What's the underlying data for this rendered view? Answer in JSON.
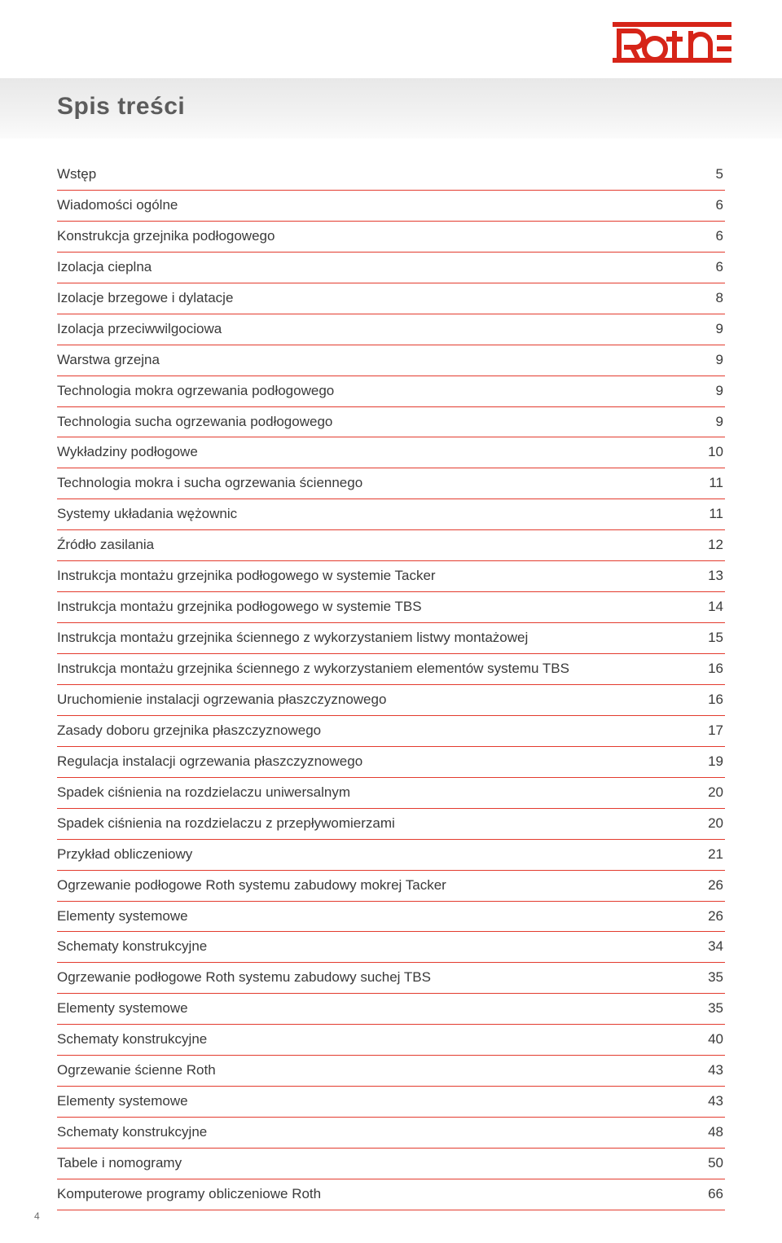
{
  "brand": {
    "name": "Roth",
    "color": "#d62418"
  },
  "title": "Spis treści",
  "title_color": "#5c5c5c",
  "band_gradient": [
    "#e8e8e8",
    "#fbfbfb"
  ],
  "rule_color": "#e33b2e",
  "text_color": "#3a3a3a",
  "body_fontsize": 17,
  "page_number": "4",
  "toc": [
    {
      "label": "Wstęp",
      "page": "5"
    },
    {
      "label": "Wiadomości ogólne",
      "page": "6"
    },
    {
      "label": "Konstrukcja grzejnika podłogowego",
      "page": "6"
    },
    {
      "label": "Izolacja cieplna",
      "page": "6"
    },
    {
      "label": "Izolacje brzegowe i dylatacje",
      "page": "8"
    },
    {
      "label": "Izolacja przeciwwilgociowa",
      "page": "9"
    },
    {
      "label": "Warstwa grzejna",
      "page": "9"
    },
    {
      "label": "Technologia mokra ogrzewania podłogowego",
      "page": "9"
    },
    {
      "label": "Technologia sucha ogrzewania podłogowego",
      "page": "9"
    },
    {
      "label": "Wykładziny podłogowe",
      "page": "10"
    },
    {
      "label": "Technologia mokra i sucha ogrzewania ściennego",
      "page": "11"
    },
    {
      "label": "Systemy układania wężownic",
      "page": "11"
    },
    {
      "label": "Źródło zasilania",
      "page": "12"
    },
    {
      "label": "Instrukcja montażu grzejnika podłogowego w systemie Tacker",
      "page": "13"
    },
    {
      "label": "Instrukcja montażu grzejnika podłogowego w systemie TBS",
      "page": "14"
    },
    {
      "label": "Instrukcja montażu grzejnika ściennego z wykorzystaniem listwy montażowej",
      "page": "15"
    },
    {
      "label": " Instrukcja montażu grzejnika ściennego z wykorzystaniem elementów systemu TBS",
      "page": "16"
    },
    {
      "label": "Uruchomienie instalacji ogrzewania płaszczyznowego",
      "page": "16"
    },
    {
      "label": "Zasady doboru grzejnika płaszczyznowego",
      "page": "17"
    },
    {
      "label": "Regulacja instalacji ogrzewania płaszczyznowego",
      "page": "19"
    },
    {
      "label": "Spadek ciśnienia na rozdzielaczu uniwersalnym",
      "page": "20"
    },
    {
      "label": "Spadek ciśnienia na rozdzielaczu z przepływomierzami",
      "page": "20"
    },
    {
      "label": "Przykład obliczeniowy",
      "page": "21"
    },
    {
      "label": "Ogrzewanie podłogowe Roth systemu zabudowy mokrej Tacker",
      "page": "26"
    },
    {
      "label": "Elementy systemowe",
      "page": "26"
    },
    {
      "label": "Schematy konstrukcyjne",
      "page": "34"
    },
    {
      "label": "Ogrzewanie podłogowe Roth systemu zabudowy suchej TBS",
      "page": "35"
    },
    {
      "label": "Elementy systemowe",
      "page": "35"
    },
    {
      "label": "Schematy konstrukcyjne",
      "page": "40"
    },
    {
      "label": "Ogrzewanie ścienne Roth",
      "page": "43"
    },
    {
      "label": "Elementy systemowe",
      "page": "43"
    },
    {
      "label": "Schematy konstrukcyjne",
      "page": "48"
    },
    {
      "label": "Tabele i nomogramy",
      "page": "50"
    },
    {
      "label": "Komputerowe programy obliczeniowe Roth",
      "page": "66"
    }
  ]
}
